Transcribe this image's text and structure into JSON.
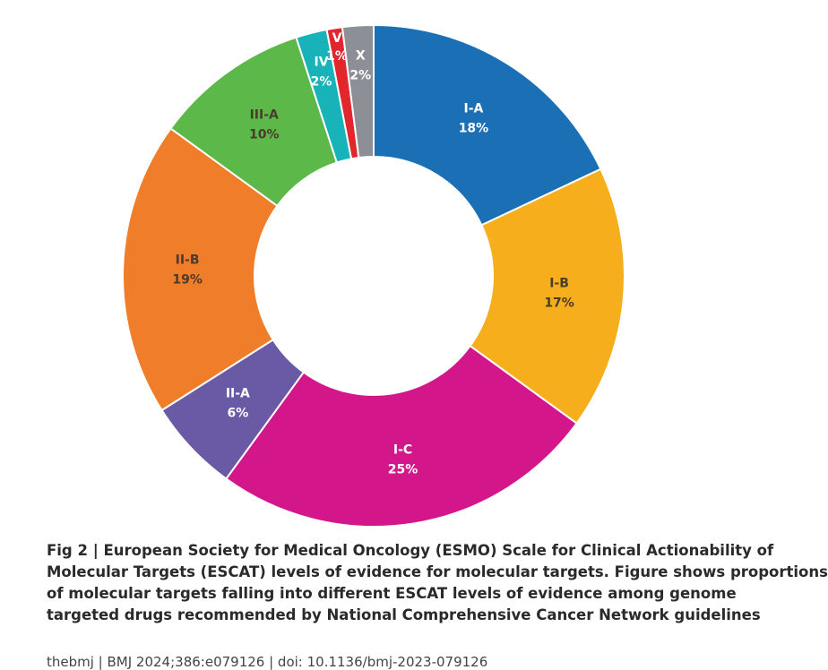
{
  "chart_data": {
    "type": "pie",
    "categories": [
      "I-A",
      "I-B",
      "I-C",
      "II-A",
      "II-B",
      "III-A",
      "IV",
      "V",
      "X"
    ],
    "values": [
      18,
      17,
      25,
      6,
      19,
      10,
      2,
      1,
      2
    ],
    "value_labels": [
      "18%",
      "17%",
      "25%",
      "6%",
      "19%",
      "10%",
      "2%",
      "1%",
      "2%"
    ],
    "colors": [
      "#1a6fb5",
      "#f6ae1d",
      "#d3178a",
      "#6a5aa5",
      "#ef7d29",
      "#5cb949",
      "#17b3b8",
      "#e2262e",
      "#8c8f96"
    ],
    "label_colors": [
      "#ffffff",
      "#4a3b2c",
      "#ffffff",
      "#ffffff",
      "#4a3b2c",
      "#4a3b2c",
      "#ffffff",
      "#ffffff",
      "#ffffff"
    ]
  },
  "caption_lines": [
    "Fig 2 | European Society for Medical Oncology (ESMO) Scale for Clinical Actionability of",
    "Molecular Targets (ESCAT) levels of evidence for molecular targets. Figure shows proportions",
    "of molecular targets falling into different ESCAT levels of evidence among genome",
    "targeted drugs recommended by National Comprehensive Cancer Network guidelines"
  ],
  "footer": "thebmj | BMJ 2024;386:e079126 | doi: 10.1136/bmj-2023-079126"
}
